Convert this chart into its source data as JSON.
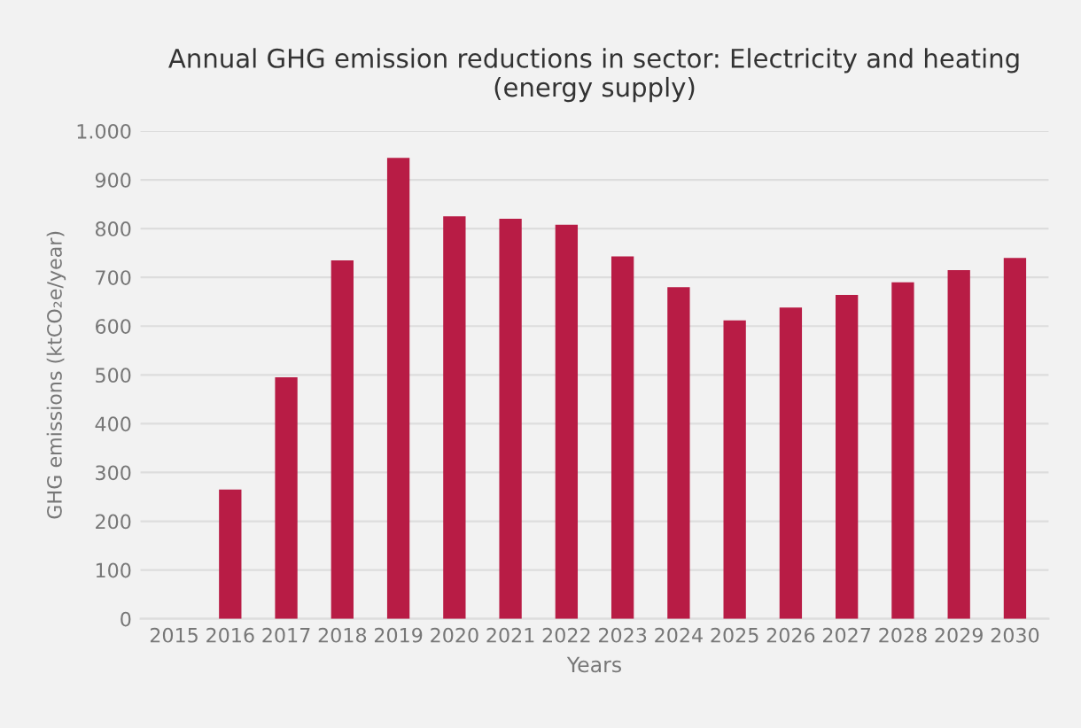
{
  "chart_data": {
    "type": "bar",
    "title": "Annual GHG emission reductions in sector: Electricity and heating\n(energy supply)",
    "xlabel": "Years",
    "ylabel": "GHG emissions (ktCO₂e/year)",
    "categories": [
      "2015",
      "2016",
      "2017",
      "2018",
      "2019",
      "2020",
      "2021",
      "2022",
      "2023",
      "2024",
      "2025",
      "2026",
      "2027",
      "2028",
      "2029",
      "2030"
    ],
    "values": [
      0,
      265,
      495,
      735,
      945,
      825,
      820,
      808,
      743,
      680,
      612,
      638,
      664,
      690,
      715,
      740
    ],
    "color": "#b81c45",
    "ylim": [
      0,
      1000
    ],
    "yticks": [
      0,
      100,
      200,
      300,
      400,
      500,
      600,
      700,
      800,
      900,
      {
        "value": 1000,
        "label": "1.000"
      }
    ],
    "grid": "y",
    "legend": false
  }
}
